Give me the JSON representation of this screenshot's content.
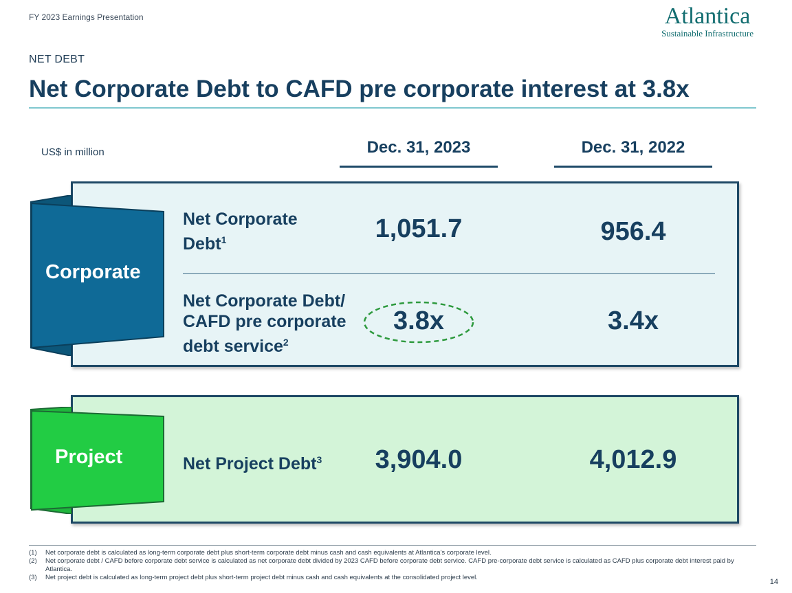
{
  "header": {
    "presentation_title": "FY 2023 Earnings Presentation",
    "logo_wordmark": "Atlantica",
    "logo_tagline": "Sustainable Infrastructure"
  },
  "slide": {
    "section": "NET DEBT",
    "title": "Net Corporate Debt to CAFD pre corporate interest at 3.8x",
    "units": "US$ in million",
    "columns": [
      "Dec. 31, 2023",
      "Dec. 31, 2022"
    ]
  },
  "corporate": {
    "ribbon": "Corporate",
    "rows": [
      {
        "label": "Net Corporate Debt",
        "note": "1",
        "v2023": "1,051.7",
        "v2022": "956.4"
      },
      {
        "label_line1": "Net Corporate Debt/",
        "label_line2": "CAFD pre corporate",
        "label_line3": "debt service",
        "note": "2",
        "v2023": "3.8x",
        "v2022": "3.4x"
      }
    ]
  },
  "project": {
    "ribbon": "Project",
    "rows": [
      {
        "label": "Net Project Debt",
        "note": "3",
        "v2023": "3,904.0",
        "v2022": "4,012.9"
      }
    ]
  },
  "footnotes": [
    {
      "num": "(1)",
      "text": "Net corporate debt is calculated as long-term corporate debt plus short-term corporate debt minus cash and cash equivalents at Atlantica's corporate level."
    },
    {
      "num": "(2)",
      "text": "Net corporate debt / CAFD before corporate debt service is calculated as net corporate debt divided by 2023 CAFD before corporate debt service. CAFD pre-corporate debt service is calculated as CAFD plus corporate debt interest paid by Atlantica."
    },
    {
      "num": "(3)",
      "text": "Net project debt is calculated as long-term project debt plus short-term project debt minus cash and cash equivalents at the consolidated project level."
    }
  ],
  "page_number": "14",
  "colors": {
    "navy": "#173f5f",
    "corporate_ribbon": "#0f6a97",
    "project_ribbon": "#22cc44",
    "highlight_ellipse": "#2e9a3e"
  }
}
